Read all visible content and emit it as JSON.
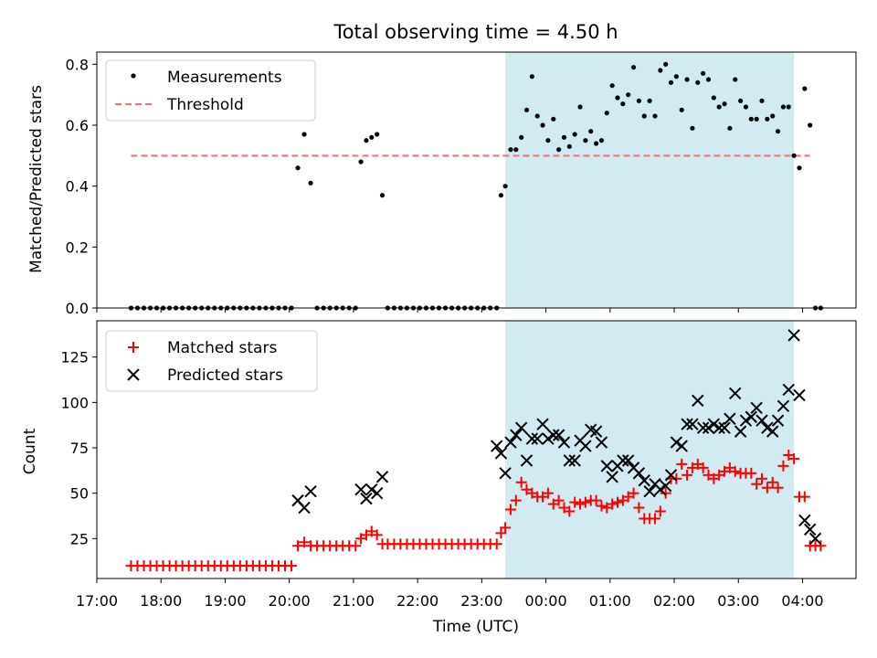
{
  "title": "Total observing time = 4.50 h",
  "colors": {
    "highlight": "#add8e6",
    "threshold": "#ff6e6e",
    "matched": "#ff0000",
    "predicted": "#000000",
    "measurement": "#000000"
  },
  "chart_data": [
    {
      "type": "scatter",
      "panel": "top",
      "ylabel": "Matched/Predicted stars",
      "xlabel": "",
      "ylim": [
        0,
        0.84
      ],
      "yticks": [
        0.0,
        0.2,
        0.4,
        0.6,
        0.8
      ],
      "ytick_labels": [
        "0.0",
        "0.2",
        "0.4",
        "0.6",
        "0.8"
      ],
      "legend": {
        "placement": "top-left",
        "entries": [
          "Measurements",
          "Threshold"
        ]
      },
      "threshold": {
        "value": 0.5,
        "x_start": "17:32",
        "x_end": "04:07"
      },
      "highlight_span": {
        "start": "23:22",
        "end": "03:52"
      },
      "series": [
        {
          "name": "Measurements",
          "marker": "dot",
          "x": [
            "17:32",
            "17:38",
            "17:44",
            "17:50",
            "17:56",
            "18:02",
            "18:08",
            "18:14",
            "18:20",
            "18:26",
            "18:32",
            "18:38",
            "18:44",
            "18:50",
            "18:56",
            "19:02",
            "19:08",
            "19:14",
            "19:20",
            "19:26",
            "19:32",
            "19:38",
            "19:44",
            "19:50",
            "19:56",
            "20:02",
            "20:08",
            "20:14",
            "20:20",
            "20:26",
            "20:32",
            "20:38",
            "20:44",
            "20:50",
            "20:56",
            "21:02",
            "21:07",
            "21:12",
            "21:17",
            "21:22",
            "21:27",
            "21:32",
            "21:38",
            "21:44",
            "21:50",
            "21:56",
            "22:02",
            "22:08",
            "22:14",
            "22:20",
            "22:26",
            "22:32",
            "22:38",
            "22:44",
            "22:50",
            "22:56",
            "23:02",
            "23:08",
            "23:14",
            "23:18",
            "23:22",
            "23:27",
            "23:32",
            "23:37",
            "23:42",
            "23:47",
            "23:52",
            "23:57",
            "00:02",
            "00:07",
            "00:12",
            "00:17",
            "00:22",
            "00:27",
            "00:32",
            "00:37",
            "00:42",
            "00:47",
            "00:52",
            "00:57",
            "01:02",
            "01:07",
            "01:12",
            "01:17",
            "01:22",
            "01:27",
            "01:32",
            "01:37",
            "01:42",
            "01:47",
            "01:52",
            "01:57",
            "02:02",
            "02:07",
            "02:12",
            "02:17",
            "02:22",
            "02:27",
            "02:32",
            "02:37",
            "02:42",
            "02:47",
            "02:52",
            "02:57",
            "03:02",
            "03:07",
            "03:12",
            "03:17",
            "03:22",
            "03:27",
            "03:32",
            "03:37",
            "03:42",
            "03:47",
            "03:52",
            "03:57",
            "04:02",
            "04:07",
            "04:12",
            "04:17"
          ],
          "y": [
            0,
            0,
            0,
            0,
            0,
            0,
            0,
            0,
            0,
            0,
            0,
            0,
            0,
            0,
            0,
            0,
            0,
            0,
            0,
            0,
            0,
            0,
            0,
            0,
            0,
            0,
            0.46,
            0.57,
            0.41,
            0,
            0,
            0,
            0,
            0,
            0,
            0,
            0.48,
            0.55,
            0.56,
            0.57,
            0.37,
            0,
            0,
            0,
            0,
            0,
            0,
            0,
            0,
            0,
            0,
            0,
            0,
            0,
            0,
            0,
            0,
            0,
            0,
            0.37,
            0.4,
            0.52,
            0.52,
            0.56,
            0.65,
            0.76,
            0.63,
            0.6,
            0.55,
            0.62,
            0.52,
            0.56,
            0.53,
            0.57,
            0.66,
            0.55,
            0.58,
            0.54,
            0.55,
            0.64,
            0.73,
            0.69,
            0.67,
            0.7,
            0.79,
            0.68,
            0.63,
            0.68,
            0.63,
            0.78,
            0.8,
            0.74,
            0.76,
            0.65,
            0.75,
            0.59,
            0.74,
            0.77,
            0.75,
            0.69,
            0.66,
            0.67,
            0.59,
            0.75,
            0.68,
            0.66,
            0.62,
            0.62,
            0.68,
            0.62,
            0.63,
            0.58,
            0.66,
            0.66,
            0.5,
            0.46,
            0.72,
            0.6,
            0,
            0
          ]
        }
      ]
    },
    {
      "type": "scatter",
      "panel": "bottom",
      "ylabel": "Count",
      "xlabel": "Time (UTC)",
      "ylim": [
        3,
        145
      ],
      "yticks": [
        25,
        50,
        75,
        100,
        125
      ],
      "ytick_labels": [
        "25",
        "50",
        "75",
        "100",
        "125"
      ],
      "xlim": [
        "17:00",
        "04:50"
      ],
      "xticks": [
        "17:00",
        "18:00",
        "19:00",
        "20:00",
        "21:00",
        "22:00",
        "23:00",
        "00:00",
        "01:00",
        "02:00",
        "03:00",
        "04:00"
      ],
      "legend": {
        "placement": "top-left",
        "entries": [
          "Matched stars",
          "Predicted stars"
        ]
      },
      "highlight_span": {
        "start": "23:22",
        "end": "03:52"
      },
      "series": [
        {
          "name": "Matched stars",
          "marker": "plus",
          "x": [
            "17:32",
            "17:38",
            "17:44",
            "17:50",
            "17:56",
            "18:02",
            "18:08",
            "18:14",
            "18:20",
            "18:26",
            "18:32",
            "18:38",
            "18:44",
            "18:50",
            "18:56",
            "19:02",
            "19:08",
            "19:14",
            "19:20",
            "19:26",
            "19:32",
            "19:38",
            "19:44",
            "19:50",
            "19:56",
            "20:02",
            "20:08",
            "20:14",
            "20:20",
            "20:26",
            "20:32",
            "20:38",
            "20:44",
            "20:50",
            "20:56",
            "21:02",
            "21:07",
            "21:12",
            "21:17",
            "21:22",
            "21:27",
            "21:32",
            "21:38",
            "21:44",
            "21:50",
            "21:56",
            "22:02",
            "22:08",
            "22:14",
            "22:20",
            "22:26",
            "22:32",
            "22:38",
            "22:44",
            "22:50",
            "22:56",
            "23:02",
            "23:08",
            "23:14",
            "23:18",
            "23:22",
            "23:27",
            "23:32",
            "23:37",
            "23:42",
            "23:47",
            "23:52",
            "23:57",
            "00:02",
            "00:07",
            "00:12",
            "00:17",
            "00:22",
            "00:27",
            "00:32",
            "00:37",
            "00:42",
            "00:47",
            "00:52",
            "00:57",
            "01:02",
            "01:07",
            "01:12",
            "01:17",
            "01:22",
            "01:27",
            "01:32",
            "01:37",
            "01:42",
            "01:47",
            "01:52",
            "01:57",
            "02:02",
            "02:07",
            "02:12",
            "02:17",
            "02:22",
            "02:27",
            "02:32",
            "02:37",
            "02:42",
            "02:47",
            "02:52",
            "02:57",
            "03:02",
            "03:07",
            "03:12",
            "03:17",
            "03:22",
            "03:27",
            "03:32",
            "03:37",
            "03:42",
            "03:47",
            "03:52",
            "03:57",
            "04:02",
            "04:07",
            "04:12",
            "04:17"
          ],
          "y": [
            10,
            10,
            10,
            10,
            10,
            10,
            10,
            10,
            10,
            10,
            10,
            10,
            10,
            10,
            10,
            10,
            10,
            10,
            10,
            10,
            10,
            10,
            10,
            10,
            10,
            10,
            21,
            23,
            21,
            21,
            21,
            21,
            21,
            21,
            21,
            21,
            25,
            27,
            29,
            27,
            22,
            22,
            22,
            22,
            22,
            22,
            22,
            22,
            22,
            22,
            22,
            22,
            22,
            22,
            22,
            22,
            22,
            22,
            22,
            28,
            31,
            41,
            46,
            56,
            52,
            50,
            48,
            48,
            50,
            44,
            46,
            42,
            40,
            45,
            44,
            45,
            46,
            46,
            43,
            42,
            44,
            45,
            46,
            48,
            50,
            42,
            36,
            36,
            36,
            40,
            50,
            58,
            58,
            66,
            60,
            64,
            66,
            64,
            60,
            58,
            60,
            62,
            64,
            62,
            61,
            61,
            61,
            55,
            58,
            53,
            56,
            53,
            65,
            71,
            69,
            48,
            48,
            21,
            21,
            21
          ]
        },
        {
          "name": "Predicted stars",
          "marker": "x",
          "x": [
            "20:08",
            "20:14",
            "20:20",
            "21:07",
            "21:12",
            "21:17",
            "21:22",
            "21:27",
            "23:14",
            "23:18",
            "23:22",
            "23:27",
            "23:32",
            "23:37",
            "23:42",
            "23:47",
            "23:52",
            "23:57",
            "00:02",
            "00:07",
            "00:12",
            "00:17",
            "00:22",
            "00:27",
            "00:32",
            "00:37",
            "00:42",
            "00:47",
            "00:52",
            "00:57",
            "01:02",
            "01:07",
            "01:12",
            "01:17",
            "01:22",
            "01:27",
            "01:32",
            "01:37",
            "01:42",
            "01:47",
            "01:52",
            "01:57",
            "02:02",
            "02:07",
            "02:12",
            "02:17",
            "02:22",
            "02:27",
            "02:32",
            "02:37",
            "02:42",
            "02:47",
            "02:52",
            "02:57",
            "03:02",
            "03:07",
            "03:12",
            "03:17",
            "03:22",
            "03:27",
            "03:32",
            "03:37",
            "03:42",
            "03:47",
            "03:52",
            "03:57",
            "04:02",
            "04:07",
            "04:12"
          ],
          "y": [
            46,
            42,
            51,
            52,
            47,
            52,
            50,
            59,
            76,
            72,
            61,
            78,
            82,
            86,
            68,
            80,
            80,
            88,
            80,
            82,
            82,
            78,
            68,
            68,
            79,
            76,
            85,
            84,
            78,
            65,
            59,
            65,
            68,
            68,
            64,
            61,
            57,
            51,
            55,
            52,
            54,
            60,
            78,
            76,
            88,
            88,
            101,
            86,
            86,
            88,
            86,
            86,
            91,
            105,
            84,
            90,
            92,
            97,
            90,
            86,
            84,
            90,
            98,
            107,
            137,
            104,
            35,
            30,
            25
          ]
        }
      ]
    }
  ]
}
